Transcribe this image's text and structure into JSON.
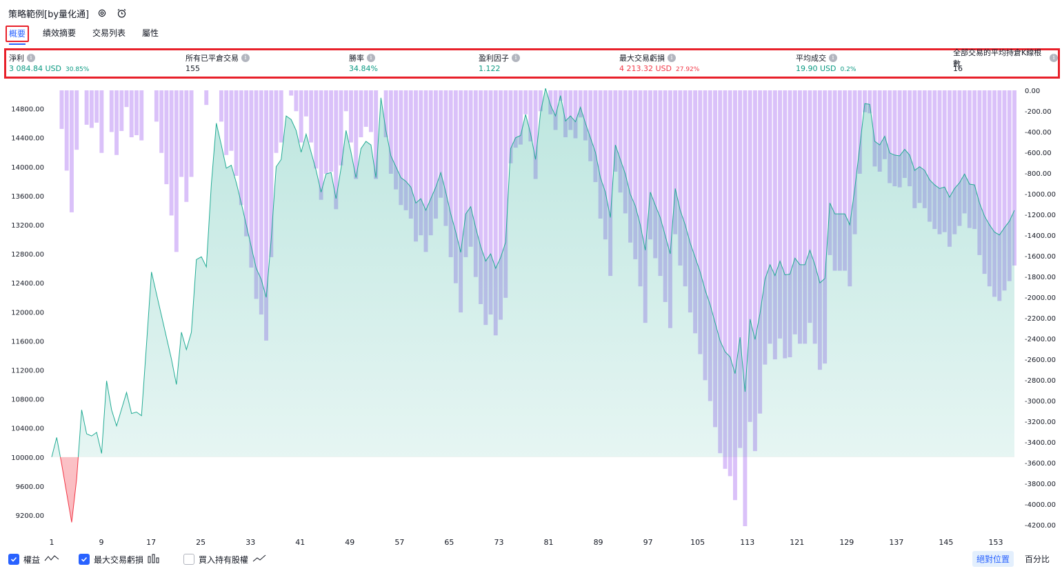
{
  "header": {
    "title": "策略範例[by量化通]",
    "settings_icon": "gear-icon",
    "alert_icon": "alarm-icon"
  },
  "tabs": [
    {
      "label": "概要",
      "active": true
    },
    {
      "label": "績效摘要",
      "active": false
    },
    {
      "label": "交易列表",
      "active": false
    },
    {
      "label": "屬性",
      "active": false
    }
  ],
  "stats": [
    {
      "label": "淨利",
      "value": "3 084.84 USD",
      "sub": "30.85%",
      "color": "#089981"
    },
    {
      "label": "所有已平倉交易",
      "value": "155",
      "sub": "",
      "color": "#131722"
    },
    {
      "label": "勝率",
      "value": "34.84%",
      "sub": "",
      "color": "#089981"
    },
    {
      "label": "盈利因子",
      "value": "1.122",
      "sub": "",
      "color": "#089981"
    },
    {
      "label": "最大交易虧損",
      "value": "4 213.32 USD",
      "sub": "27.92%",
      "color": "#f23645"
    },
    {
      "label": "平均成交",
      "value": "19.90 USD",
      "sub": "0.2%",
      "color": "#089981"
    },
    {
      "label": "全部交易的平均持倉K線根數",
      "value": "16",
      "sub": "",
      "color": "#131722"
    }
  ],
  "chart_data": {
    "type": "line",
    "left_axis": {
      "ticks": [
        "14800.00",
        "14400.00",
        "14000.00",
        "13600.00",
        "13200.00",
        "12800.00",
        "12400.00",
        "12000.00",
        "11600.00",
        "11200.00",
        "10800.00",
        "10400.00",
        "10000.00",
        "9600.00",
        "9200.00"
      ],
      "range": [
        9000,
        15100
      ]
    },
    "right_axis": {
      "ticks": [
        "0.00",
        "-200.00",
        "-400.00",
        "-600.00",
        "-800.00",
        "-1000.00",
        "-1200.00",
        "-1400.00",
        "-1600.00",
        "-1800.00",
        "-2000.00",
        "-2200.00",
        "-2400.00",
        "-2600.00",
        "-2800.00",
        "-3000.00",
        "-3200.00",
        "-3400.00",
        "-3600.00",
        "-3800.00",
        "-4000.00",
        "-4200.00"
      ],
      "range": [
        -4213,
        0
      ]
    },
    "x_ticks": [
      "1",
      "9",
      "17",
      "25",
      "33",
      "41",
      "49",
      "57",
      "65",
      "73",
      "81",
      "89",
      "97",
      "105",
      "113",
      "121",
      "129",
      "137",
      "145",
      "153"
    ],
    "baseline": 10000,
    "series": [
      {
        "name": "權益",
        "color": "#22ab94",
        "values": [
          10000,
          10270,
          9900,
          9500,
          9100,
          9700,
          10650,
          10320,
          10290,
          10340,
          10050,
          11050,
          10650,
          10430,
          10660,
          10890,
          10600,
          10620,
          10570,
          11550,
          12550,
          12250,
          11950,
          11650,
          11350,
          11000,
          11720,
          11480,
          11720,
          12720,
          12760,
          12620,
          13760,
          14600,
          14300,
          13980,
          14020,
          13780,
          13500,
          13200,
          12900,
          12600,
          12450,
          12200,
          13000,
          14000,
          14100,
          14700,
          14650,
          14500,
          14200,
          14450,
          14200,
          13950,
          13650,
          13900,
          13920,
          13560,
          13980,
          14500,
          14200,
          13850,
          14250,
          14350,
          14300,
          13850,
          14950,
          14500,
          14150,
          14000,
          13850,
          13800,
          13720,
          13500,
          13560,
          13400,
          13560,
          13720,
          13920,
          13650,
          13350,
          13100,
          12820,
          13350,
          13450,
          13160,
          12900,
          12700,
          12800,
          12600,
          12750,
          12960,
          14250,
          14400,
          14430,
          14720,
          14460,
          14100,
          14750,
          15080,
          14850,
          14700,
          14980,
          14630,
          14700,
          14620,
          14820,
          14600,
          14400,
          14200,
          13850,
          13650,
          13300,
          14300,
          14100,
          13900,
          13620,
          13460,
          13200,
          12850,
          13650,
          13470,
          13300,
          13050,
          12800,
          13700,
          13400,
          13200,
          12950,
          12750,
          12550,
          12300,
          12100,
          11850,
          11600,
          11450,
          11380,
          11150,
          11650,
          10900,
          11900,
          11620,
          11980,
          12450,
          12650,
          12500,
          12700,
          12510,
          12520,
          12740,
          12650,
          12650,
          12850,
          12650,
          12400,
          12460,
          13500,
          13350,
          13350,
          13350,
          13200,
          13700,
          14280,
          14870,
          14860,
          14350,
          14300,
          14420,
          14190,
          14160,
          14150,
          14240,
          14160,
          13950,
          14000,
          13950,
          13820,
          13750,
          13700,
          13720,
          13580,
          13700,
          13780,
          13900,
          13760,
          13750,
          13500,
          13320,
          13200,
          13100,
          13060,
          13160,
          13250,
          13400
        ]
      },
      {
        "name": "最大交易虧損",
        "color": "#c39bf6",
        "type": "bar"
      }
    ]
  },
  "legend": [
    {
      "label": "權益",
      "checked": true,
      "icon": "line-chart-icon"
    },
    {
      "label": "最大交易虧損",
      "checked": true,
      "icon": "bar-chart-icon"
    },
    {
      "label": "買入持有股權",
      "checked": false,
      "icon": "trend-line-icon"
    }
  ],
  "toggle": {
    "absolute": "絕對位置",
    "percent": "百分比"
  }
}
